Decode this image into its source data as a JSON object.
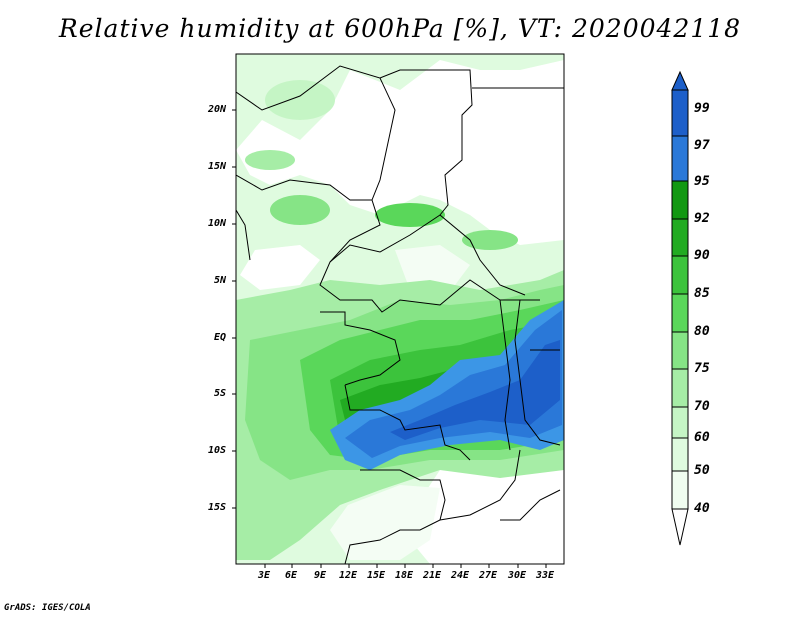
{
  "title": "Relative humidity at 600hPa [%], VT: 2020042118",
  "credit": "GrADS: IGES/COLA",
  "map": {
    "variable": "Relative humidity",
    "level": "600hPa",
    "units": "%",
    "valid_time": "2020042118",
    "lat_labels": [
      "20N",
      "15N",
      "10N",
      "5N",
      "EQ",
      "5S",
      "10S",
      "15S"
    ],
    "lon_labels": [
      "3E",
      "6E",
      "9E",
      "12E",
      "15E",
      "18E",
      "21E",
      "24E",
      "27E",
      "30E",
      "33E"
    ]
  },
  "colorbar": {
    "labels": [
      "99",
      "97",
      "95",
      "92",
      "90",
      "85",
      "80",
      "75",
      "70",
      "60",
      "50",
      "40"
    ],
    "colors": [
      "#1d5fc9",
      "#2a78d8",
      "#3c96e6",
      "#129812",
      "#22ab22",
      "#3cc33c",
      "#5ad75a",
      "#86e486",
      "#a6eda6",
      "#c5f5c5",
      "#dffbdf",
      "#f0fdf0"
    ]
  }
}
